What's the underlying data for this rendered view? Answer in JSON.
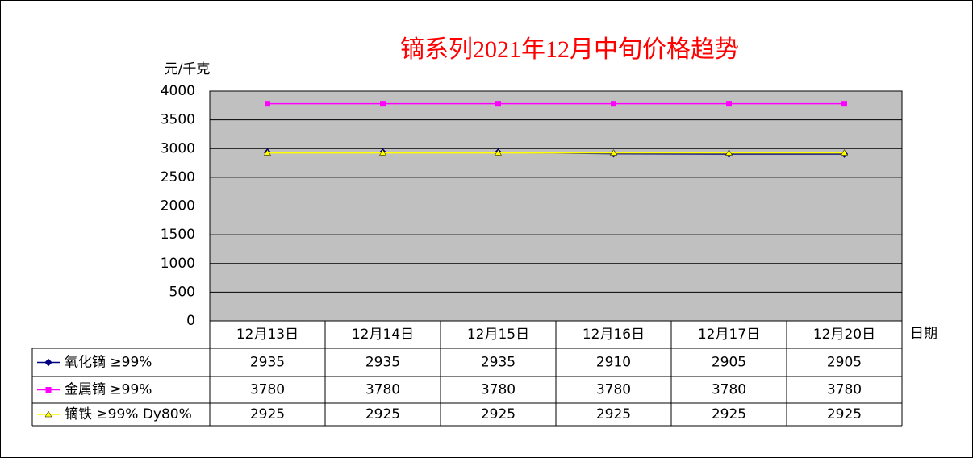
{
  "chart_data": {
    "type": "line",
    "title": "镝系列2021年12月中旬价格趋势",
    "y_label": "元/千克",
    "x_label": "日期",
    "categories": [
      "12月13日",
      "12月14日",
      "12月15日",
      "12月16日",
      "12月17日",
      "12月20日"
    ],
    "series": [
      {
        "name": "氧化镝 ≥99%",
        "color": "#000080",
        "marker": "diamond",
        "values": [
          2935,
          2935,
          2935,
          2910,
          2905,
          2905
        ]
      },
      {
        "name": "金属镝 ≥99%",
        "color": "#ff00ff",
        "marker": "square",
        "values": [
          3780,
          3780,
          3780,
          3780,
          3780,
          3780
        ]
      },
      {
        "name": "镝铁 ≥99% Dy80%",
        "color": "#ffff00",
        "marker": "triangle",
        "values": [
          2925,
          2925,
          2925,
          2925,
          2925,
          2925
        ]
      }
    ],
    "ylim": [
      0,
      4000
    ],
    "yticks": [
      0,
      500,
      1000,
      1500,
      2000,
      2500,
      3000,
      3500,
      4000
    ],
    "grid": true,
    "plot_background": "#c0c0c0"
  }
}
